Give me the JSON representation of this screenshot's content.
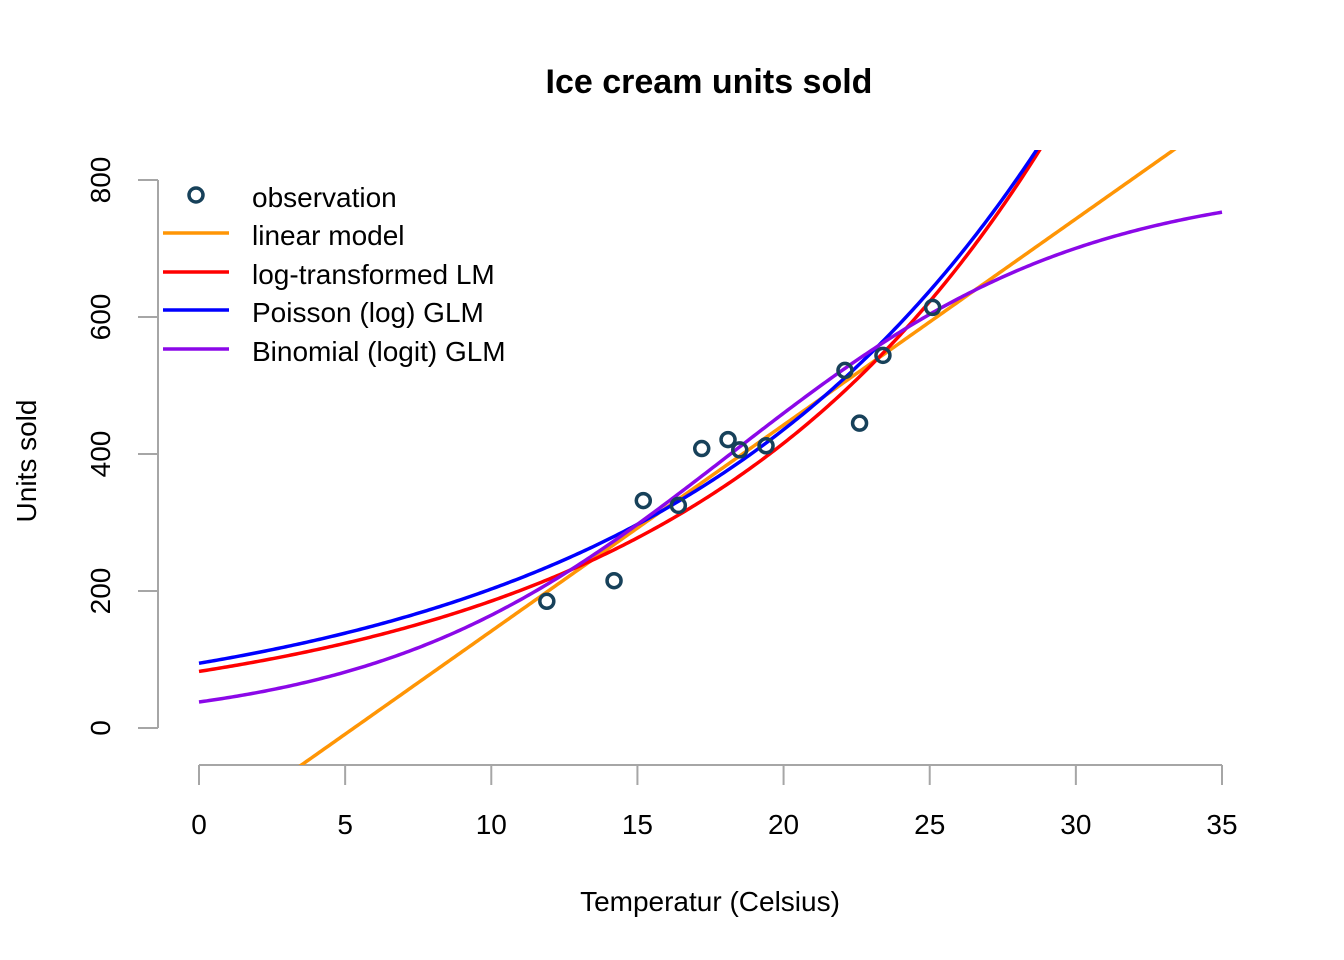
{
  "chart_data": {
    "type": "line",
    "title": "Ice cream units sold",
    "xlabel": "Temperatur (Celsius)",
    "ylabel": "Units sold",
    "xlim": [
      0,
      35
    ],
    "ylim": [
      0,
      800
    ],
    "x_ticks": [
      "0",
      "5",
      "10",
      "15",
      "20",
      "25",
      "30",
      "35"
    ],
    "y_ticks": [
      "0",
      "200",
      "400",
      "600",
      "800"
    ],
    "grid": false,
    "legend_position": "top-left",
    "observations": {
      "name": "observation",
      "color": "#17415a",
      "points": [
        {
          "x": 11.9,
          "y": 185
        },
        {
          "x": 14.2,
          "y": 215
        },
        {
          "x": 15.2,
          "y": 332
        },
        {
          "x": 16.4,
          "y": 325
        },
        {
          "x": 17.2,
          "y": 408
        },
        {
          "x": 18.1,
          "y": 421
        },
        {
          "x": 18.5,
          "y": 406
        },
        {
          "x": 19.4,
          "y": 412
        },
        {
          "x": 22.1,
          "y": 522
        },
        {
          "x": 22.6,
          "y": 445
        },
        {
          "x": 23.4,
          "y": 544
        },
        {
          "x": 25.1,
          "y": 614
        }
      ]
    },
    "series": [
      {
        "name": "linear model",
        "color": "#ff9505",
        "model": "linear",
        "params": {
          "intercept": -159.47,
          "slope": 30.09
        }
      },
      {
        "name": "log-transformed LM",
        "color": "#ff0000",
        "model": "exp",
        "params": {
          "a": 82.6,
          "b": 0.0808
        }
      },
      {
        "name": "Poisson (log) GLM",
        "color": "#0000ff",
        "model": "exp",
        "params": {
          "a": 94.5,
          "b": 0.0764
        }
      },
      {
        "name": "Binomial (logit) GLM",
        "color": "#8b08e8",
        "model": "logistic",
        "params": {
          "cap": 800,
          "c": -3.0,
          "d": 0.165
        }
      }
    ]
  }
}
